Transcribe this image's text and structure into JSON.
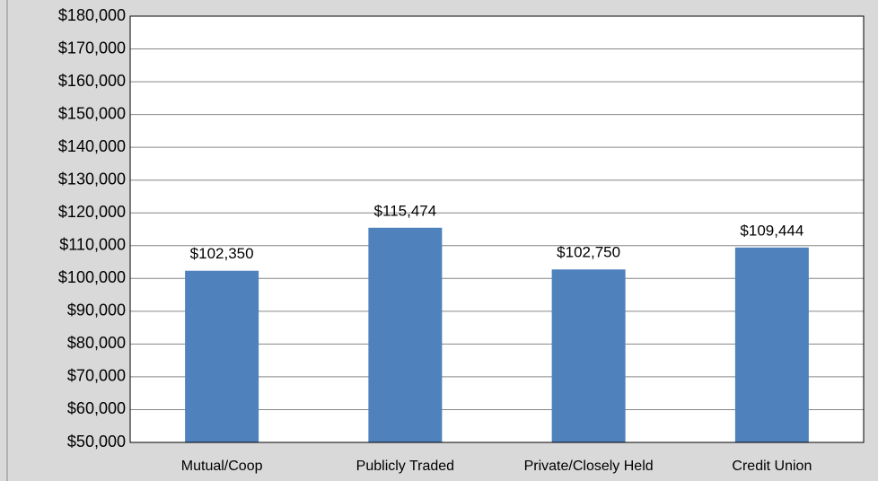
{
  "chart_data": {
    "type": "bar",
    "categories": [
      "Mutual/Coop",
      "Publicly Traded",
      "Private/Closely Held",
      "Credit Union"
    ],
    "values": [
      102350,
      115474,
      102750,
      109444
    ],
    "value_labels": [
      "$102,350",
      "$115,474",
      "$102,750",
      "$109,444"
    ],
    "color": "#4f81bd",
    "ylim": [
      50000,
      180000
    ],
    "yticks": [
      {
        "value": 50000,
        "label": "$50,000"
      },
      {
        "value": 60000,
        "label": "$60,000"
      },
      {
        "value": 70000,
        "label": "$70,000"
      },
      {
        "value": 80000,
        "label": "$80,000"
      },
      {
        "value": 90000,
        "label": "$90,000"
      },
      {
        "value": 100000,
        "label": "$100,000"
      },
      {
        "value": 110000,
        "label": "$110,000"
      },
      {
        "value": 120000,
        "label": "$120,000"
      },
      {
        "value": 130000,
        "label": "$130,000"
      },
      {
        "value": 140000,
        "label": "$140,000"
      },
      {
        "value": 150000,
        "label": "$150,000"
      },
      {
        "value": 160000,
        "label": "$160,000"
      },
      {
        "value": 170000,
        "label": "$170,000"
      },
      {
        "value": 180000,
        "label": "$180,000"
      }
    ],
    "grid": true
  }
}
